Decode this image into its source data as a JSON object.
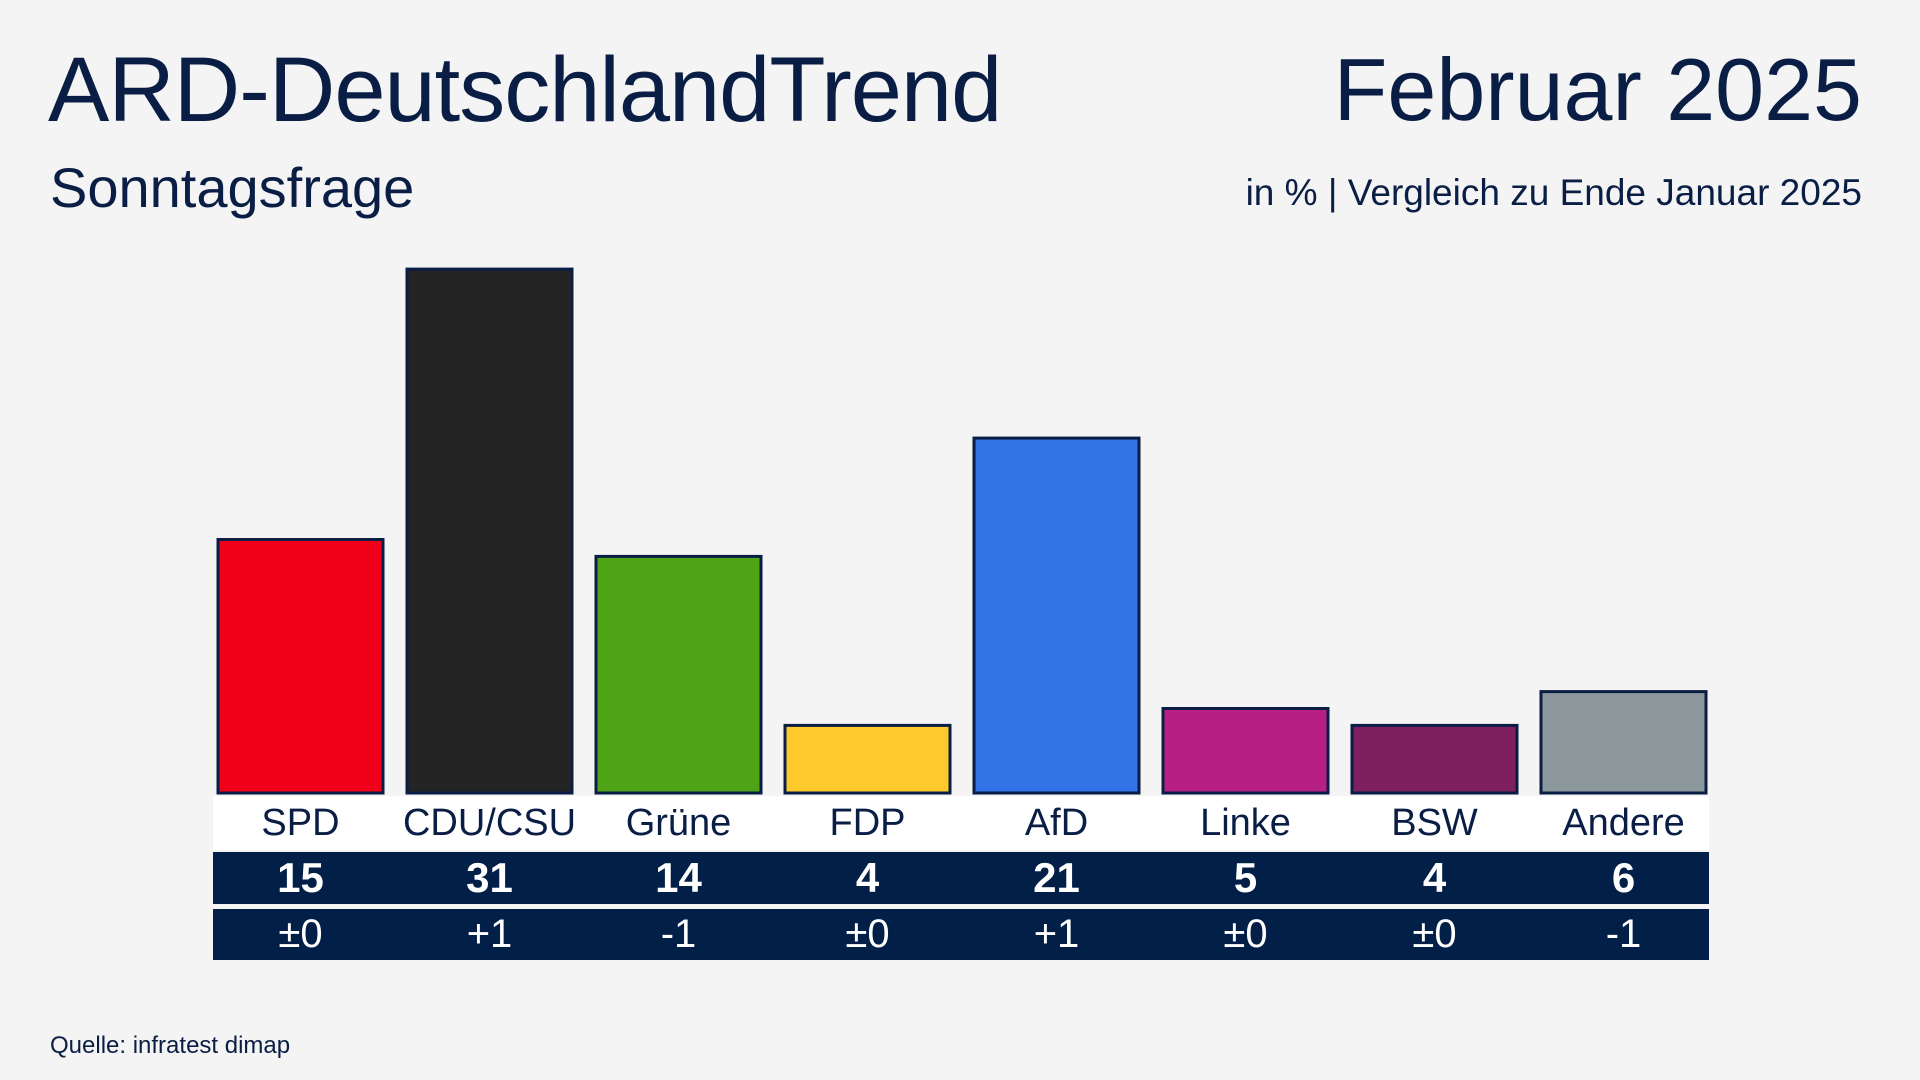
{
  "header": {
    "title": "ARD-DeutschlandTrend",
    "date": "Februar 2025",
    "subtitle": "Sonntagsfrage",
    "note": "in % | Vergleich zu  Ende Januar 2025"
  },
  "source": "Quelle: infratest dimap",
  "chart_data": {
    "type": "bar",
    "title": "Sonntagsfrage",
    "categories": [
      "SPD",
      "CDU/CSU",
      "Grüne",
      "FDP",
      "AfD",
      "Linke",
      "BSW",
      "Andere"
    ],
    "values": [
      15,
      31,
      14,
      4,
      21,
      5,
      4,
      6
    ],
    "value_labels": [
      "15",
      "31",
      "14",
      "4",
      "21",
      "5",
      "4",
      "6"
    ],
    "changes": [
      "±0",
      "+1",
      "-1",
      "±0",
      "+1",
      "±0",
      "±0",
      "-1"
    ],
    "colors": [
      "#f00019",
      "#242424",
      "#4fa316",
      "#fec92a",
      "#3273e7",
      "#b81f84",
      "#7e2060",
      "#8c989c"
    ],
    "unit": "%",
    "grid": false
  }
}
